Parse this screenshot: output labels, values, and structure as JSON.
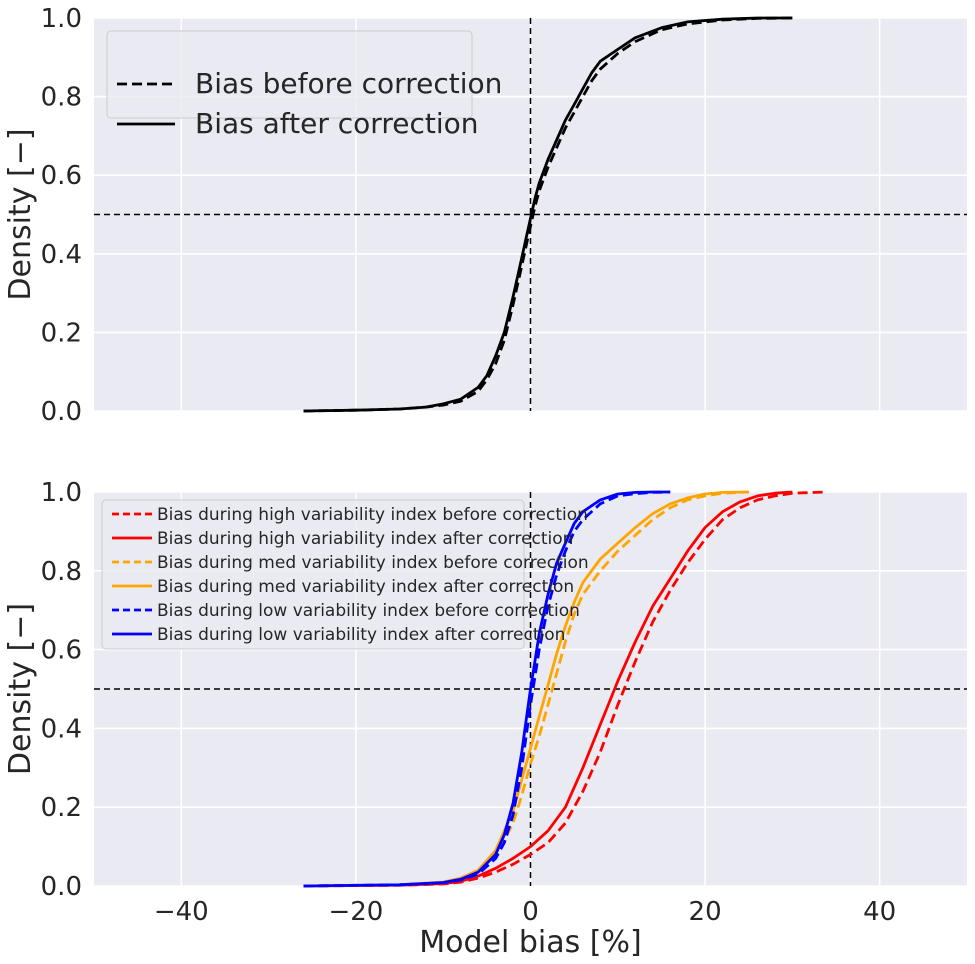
{
  "chart_data": [
    {
      "type": "line",
      "ylabel": "Density [−]",
      "xlim": [
        -50,
        50
      ],
      "ylim": [
        0,
        1
      ],
      "grid": true,
      "legend_position": "top-left",
      "reference_lines": {
        "x": 0,
        "y": 0.5
      },
      "yticks": [
        "0.0",
        "0.2",
        "0.4",
        "0.6",
        "0.8",
        "1.0"
      ],
      "yticks_values": [
        0,
        0.2,
        0.4,
        0.6,
        0.8,
        1.0
      ],
      "series": [
        {
          "name": "Bias before correction",
          "color": "#000000",
          "dash": "dashed",
          "x": [
            -26,
            -20,
            -15,
            -12,
            -10,
            -8,
            -6,
            -5,
            -4,
            -3,
            -2,
            -1,
            -0.5,
            0,
            0.5,
            1,
            2,
            3,
            4,
            5,
            6,
            7,
            8,
            10,
            12,
            15,
            18,
            22,
            26,
            30
          ],
          "y": [
            0.0,
            0.002,
            0.005,
            0.01,
            0.015,
            0.025,
            0.05,
            0.08,
            0.12,
            0.18,
            0.27,
            0.37,
            0.42,
            0.47,
            0.52,
            0.56,
            0.62,
            0.67,
            0.72,
            0.76,
            0.8,
            0.84,
            0.87,
            0.91,
            0.94,
            0.97,
            0.985,
            0.995,
            0.999,
            1.0
          ]
        },
        {
          "name": "Bias after correction",
          "color": "#000000",
          "dash": "solid",
          "x": [
            -26,
            -20,
            -15,
            -12,
            -10,
            -8,
            -6,
            -5,
            -4,
            -3,
            -2,
            -1,
            -0.5,
            0,
            0.5,
            1,
            2,
            3,
            4,
            5,
            6,
            7,
            8,
            10,
            12,
            15,
            18,
            22,
            26,
            30
          ],
          "y": [
            0.0,
            0.002,
            0.005,
            0.01,
            0.018,
            0.03,
            0.06,
            0.09,
            0.14,
            0.2,
            0.29,
            0.39,
            0.44,
            0.49,
            0.54,
            0.58,
            0.64,
            0.69,
            0.74,
            0.78,
            0.82,
            0.86,
            0.89,
            0.92,
            0.95,
            0.975,
            0.99,
            0.997,
            1.0,
            1.0
          ]
        }
      ]
    },
    {
      "type": "line",
      "xlabel": "Model bias [%]",
      "ylabel": "Density [−]",
      "xlim": [
        -50,
        50
      ],
      "ylim": [
        0,
        1
      ],
      "grid": true,
      "legend_position": "top-left",
      "reference_lines": {
        "x": 0,
        "y": 0.5
      },
      "xticks": [
        "−40",
        "−20",
        "0",
        "20",
        "40"
      ],
      "xticks_values": [
        -40,
        -20,
        0,
        20,
        40
      ],
      "yticks": [
        "0.0",
        "0.2",
        "0.4",
        "0.6",
        "0.8",
        "1.0"
      ],
      "yticks_values": [
        0,
        0.2,
        0.4,
        0.6,
        0.8,
        1.0
      ],
      "series": [
        {
          "name": "Bias during high variability index before correction",
          "color": "#ff0000",
          "dash": "dashed",
          "x": [
            -26,
            -15,
            -10,
            -8,
            -6,
            -4,
            -2,
            0,
            2,
            4,
            6,
            8,
            10,
            12,
            14,
            16,
            18,
            20,
            22,
            24,
            26,
            28,
            30,
            34
          ],
          "y": [
            0.0,
            0.002,
            0.005,
            0.01,
            0.02,
            0.035,
            0.055,
            0.08,
            0.11,
            0.16,
            0.24,
            0.34,
            0.46,
            0.57,
            0.67,
            0.75,
            0.82,
            0.88,
            0.93,
            0.96,
            0.98,
            0.99,
            0.997,
            1.0
          ]
        },
        {
          "name": "Bias during high variability index after correction",
          "color": "#ff0000",
          "dash": "solid",
          "x": [
            -26,
            -15,
            -10,
            -8,
            -6,
            -4,
            -2,
            0,
            2,
            4,
            6,
            8,
            10,
            12,
            14,
            16,
            18,
            20,
            22,
            24,
            26,
            28,
            30
          ],
          "y": [
            0.0,
            0.002,
            0.006,
            0.012,
            0.025,
            0.045,
            0.07,
            0.1,
            0.14,
            0.2,
            0.3,
            0.41,
            0.52,
            0.62,
            0.71,
            0.78,
            0.85,
            0.91,
            0.95,
            0.975,
            0.99,
            0.997,
            1.0
          ]
        },
        {
          "name": "Bias during med variability index before correction",
          "color": "#ffa500",
          "dash": "dashed",
          "x": [
            -26,
            -15,
            -10,
            -8,
            -6,
            -4,
            -2,
            -1,
            0,
            1,
            2,
            3,
            4,
            5,
            6,
            8,
            10,
            12,
            14,
            16,
            18,
            20,
            22,
            25
          ],
          "y": [
            0.0,
            0.003,
            0.008,
            0.015,
            0.03,
            0.07,
            0.16,
            0.23,
            0.31,
            0.38,
            0.46,
            0.54,
            0.62,
            0.69,
            0.74,
            0.8,
            0.85,
            0.89,
            0.93,
            0.96,
            0.98,
            0.99,
            0.997,
            1.0
          ]
        },
        {
          "name": "Bias during med variability index after correction",
          "color": "#ffa500",
          "dash": "solid",
          "x": [
            -26,
            -15,
            -10,
            -8,
            -6,
            -4,
            -2,
            -1,
            0,
            1,
            2,
            3,
            4,
            5,
            6,
            8,
            10,
            12,
            14,
            16,
            18,
            20,
            22,
            25
          ],
          "y": [
            0.0,
            0.003,
            0.01,
            0.02,
            0.04,
            0.09,
            0.19,
            0.27,
            0.35,
            0.43,
            0.51,
            0.59,
            0.66,
            0.72,
            0.77,
            0.83,
            0.87,
            0.91,
            0.945,
            0.97,
            0.985,
            0.995,
            0.999,
            1.0
          ]
        },
        {
          "name": "Bias during low variability index before correction",
          "color": "#0000ff",
          "dash": "dashed",
          "x": [
            -26,
            -15,
            -10,
            -8,
            -6,
            -4,
            -3,
            -2,
            -1,
            -0.5,
            0,
            0.5,
            1,
            2,
            3,
            4,
            5,
            6,
            8,
            10,
            12,
            14,
            16
          ],
          "y": [
            0.0,
            0.003,
            0.008,
            0.015,
            0.03,
            0.07,
            0.11,
            0.18,
            0.3,
            0.38,
            0.46,
            0.53,
            0.6,
            0.71,
            0.79,
            0.85,
            0.9,
            0.93,
            0.97,
            0.99,
            0.996,
            0.999,
            1.0
          ]
        },
        {
          "name": "Bias during low variability index after correction",
          "color": "#0000ff",
          "dash": "solid",
          "x": [
            -26,
            -15,
            -10,
            -8,
            -6,
            -4,
            -3,
            -2,
            -1,
            -0.5,
            0,
            0.5,
            1,
            2,
            3,
            4,
            5,
            6,
            8,
            10,
            12,
            14,
            16
          ],
          "y": [
            0.0,
            0.003,
            0.009,
            0.017,
            0.035,
            0.08,
            0.13,
            0.21,
            0.34,
            0.42,
            0.5,
            0.57,
            0.64,
            0.74,
            0.82,
            0.87,
            0.92,
            0.95,
            0.98,
            0.995,
            0.999,
            1.0,
            1.0
          ]
        }
      ]
    }
  ]
}
